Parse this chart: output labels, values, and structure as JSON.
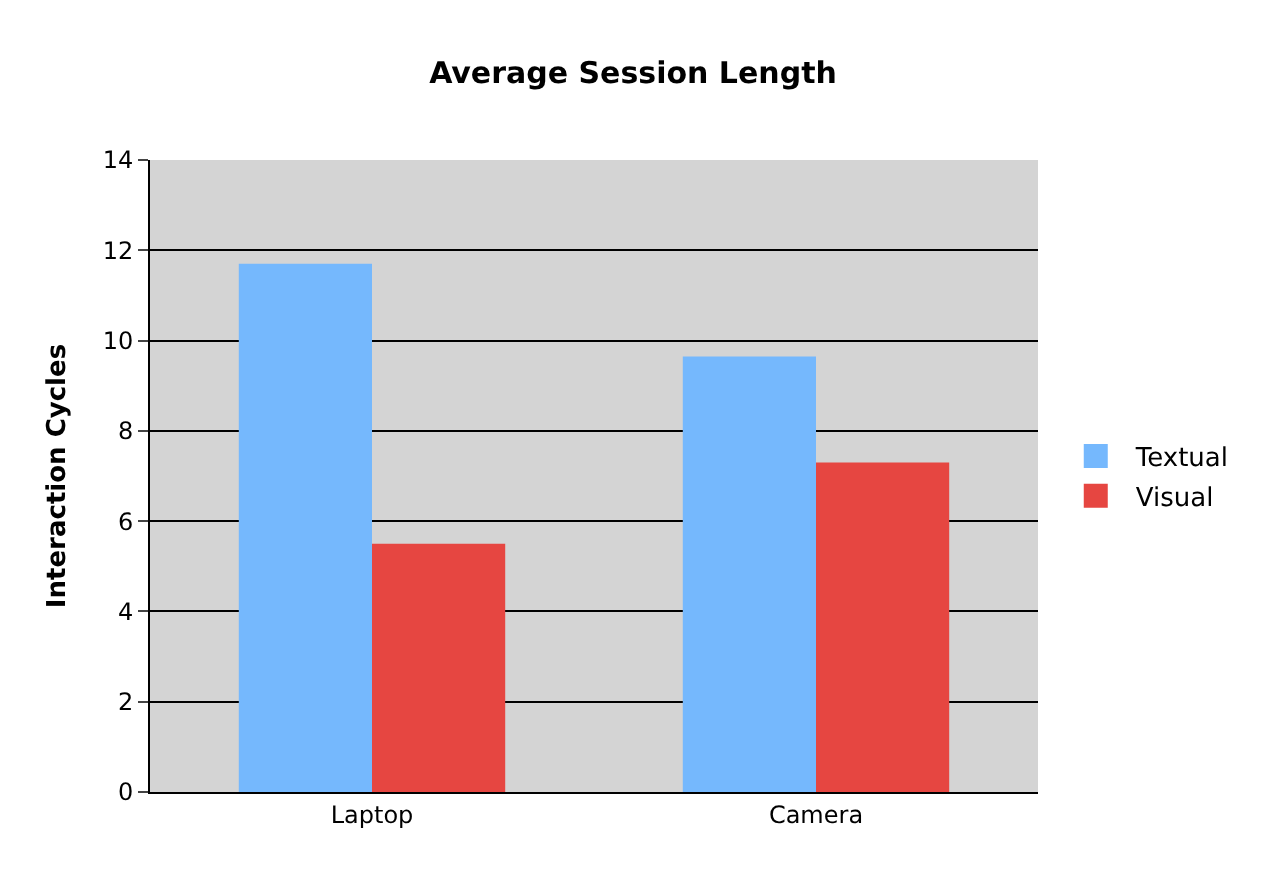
{
  "chart_data": {
    "type": "bar",
    "title": "Average Session Length",
    "ylabel": "Interaction Cycles",
    "categories": [
      "Laptop",
      "Camera"
    ],
    "series": [
      {
        "name": "Textual",
        "color": "#75b8fd",
        "values": [
          11.7,
          9.65
        ]
      },
      {
        "name": "Visual",
        "color": "#e64641",
        "values": [
          5.5,
          7.3
        ]
      }
    ],
    "ylim": [
      0,
      14
    ],
    "yticks": [
      0,
      2,
      4,
      6,
      8,
      10,
      12,
      14
    ],
    "grid": "y",
    "legend": "right"
  }
}
